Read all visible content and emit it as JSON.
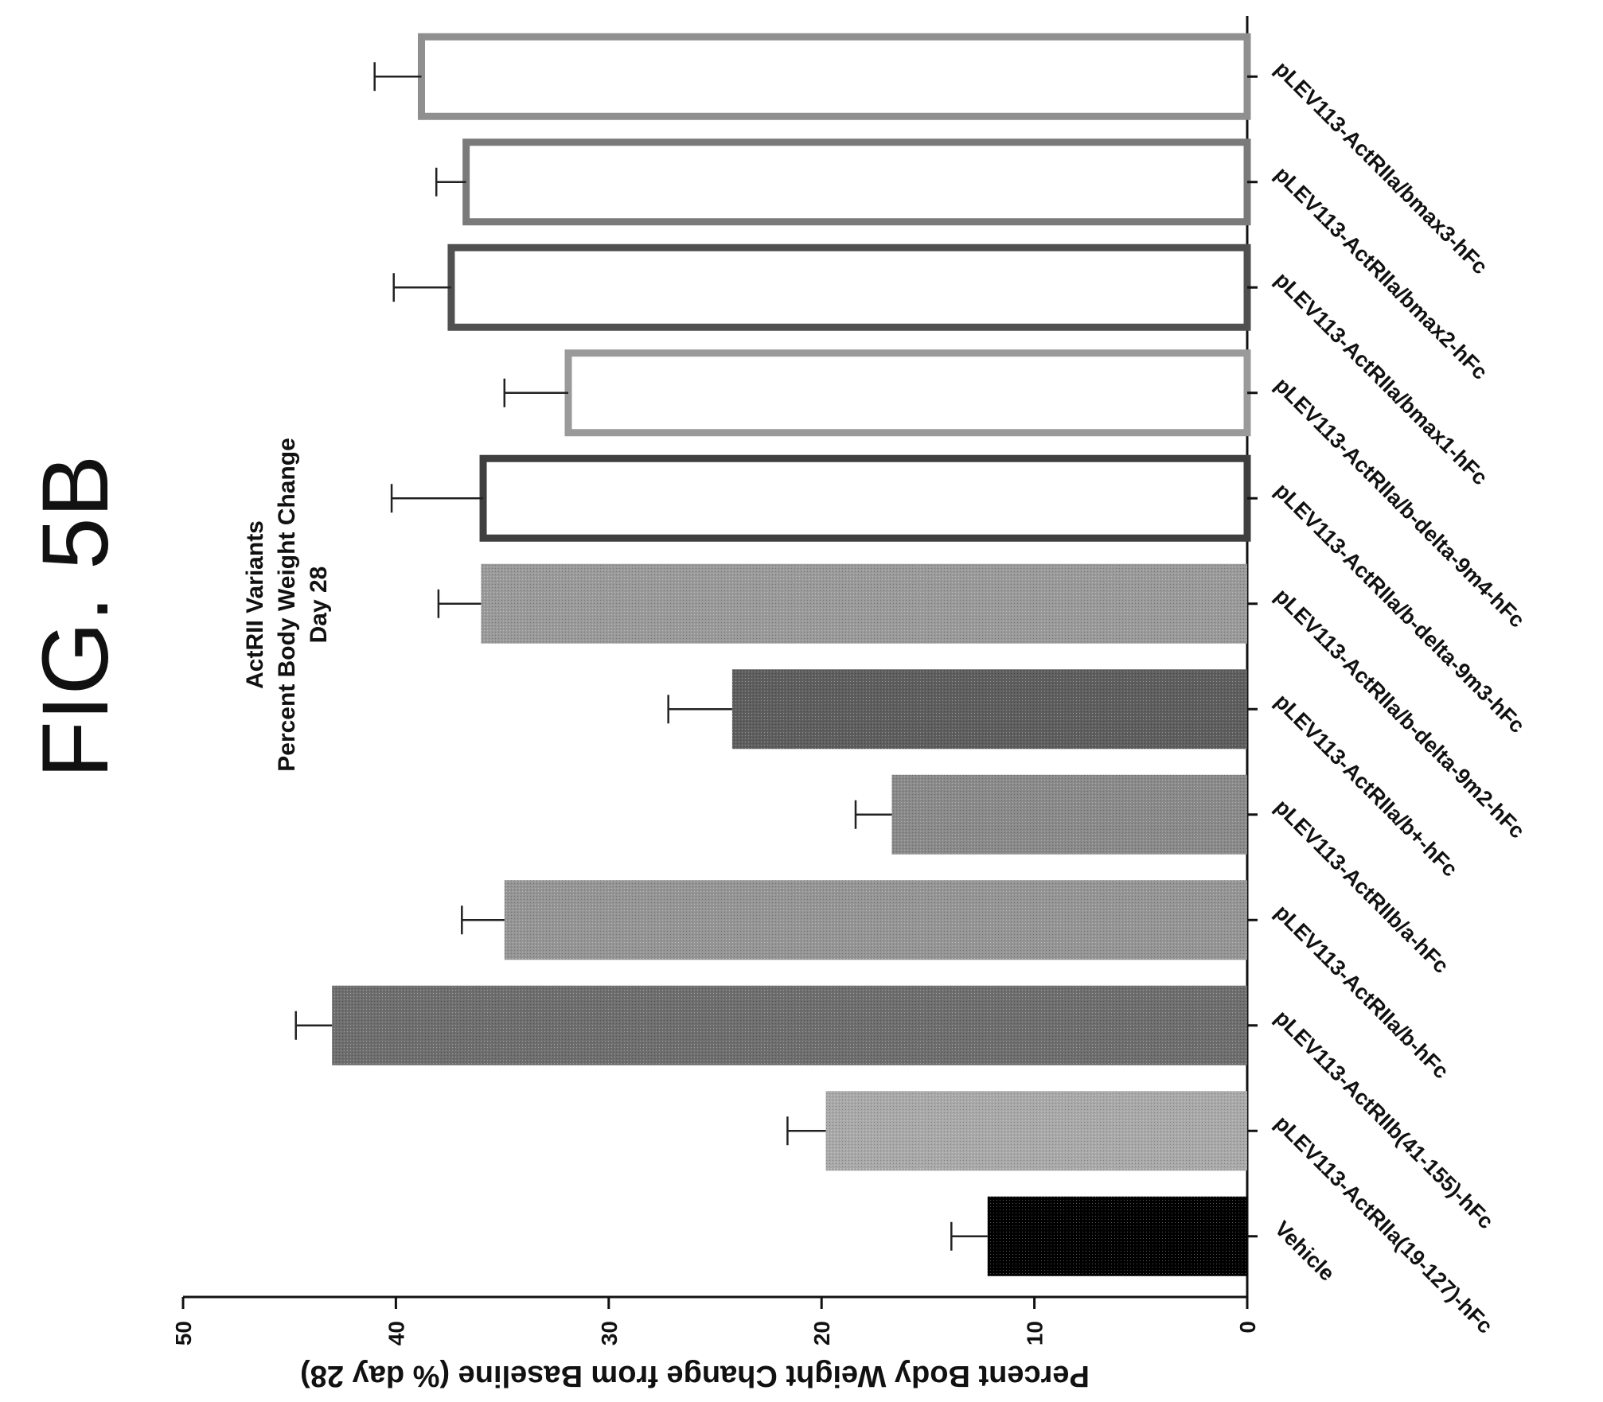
{
  "figure_label": "FIG. 5B",
  "chart_data": {
    "type": "bar",
    "orientation": "rotated 90° clockwise (value axis horizontal, bars extend leftward from baseline)",
    "title": "ActRII Variants",
    "subtitle": "Percent Body Weight Change",
    "subtitle2": "Day 28",
    "ylabel": "Percent Body Weight Change  from Baseline (% day 28)",
    "xlabel": "",
    "ylim": [
      0,
      50
    ],
    "yticks": [
      "0",
      "10",
      "20",
      "30",
      "40",
      "50"
    ],
    "grid": false,
    "legend": "none",
    "categories": [
      "Vehicle",
      "pLEV113-ActRIIa(19-127)-hFc",
      "pLEV113-ActRIIb(41-155)-hFc",
      "pLEV113-ActRIIa/b-hFc",
      "pLEV113-ActRIIb/a-hFc",
      "pLEV113-ActRIIa/b+-hFc",
      "pLEV113-ActRIIa/b-delta-9m2-hFc",
      "pLEV113-ActRIIa/b-delta-9m3-hFc",
      "pLEV113-ActRIIa/b-delta-9m4-hFc",
      "pLEV113-ActRIIa/bmax1-hFc",
      "pLEV113-ActRIIa/bmax2-hFc",
      "pLEV113-ActRIIa/bmax3-hFc"
    ],
    "values": [
      12.2,
      19.8,
      43.0,
      34.9,
      16.7,
      24.2,
      36.0,
      35.9,
      31.9,
      37.4,
      36.7,
      38.8
    ],
    "errors": [
      1.7,
      1.8,
      1.7,
      2.0,
      1.7,
      3.0,
      2.0,
      4.3,
      3.0,
      2.7,
      1.4,
      2.2
    ],
    "bar_styles": [
      "solid",
      "solid",
      "solid",
      "solid",
      "solid",
      "solid",
      "solid",
      "outline",
      "outline",
      "outline",
      "outline",
      "outline"
    ],
    "bar_colors": [
      "#000000",
      "#a9a9a9",
      "#6e6e6e",
      "#959595",
      "#8a8a8a",
      "#5e5e5e",
      "#9a9a9a",
      "#3f3f3f",
      "#9a9a9a",
      "#505050",
      "#7a7a7a",
      "#8f8f8f"
    ]
  }
}
